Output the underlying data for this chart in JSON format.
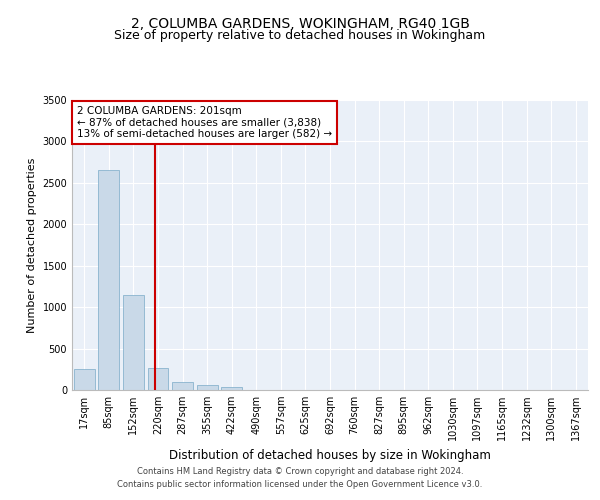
{
  "title": "2, COLUMBA GARDENS, WOKINGHAM, RG40 1GB",
  "subtitle": "Size of property relative to detached houses in Wokingham",
  "xlabel": "Distribution of detached houses by size in Wokingham",
  "ylabel": "Number of detached properties",
  "categories": [
    "17sqm",
    "85sqm",
    "152sqm",
    "220sqm",
    "287sqm",
    "355sqm",
    "422sqm",
    "490sqm",
    "557sqm",
    "625sqm",
    "692sqm",
    "760sqm",
    "827sqm",
    "895sqm",
    "962sqm",
    "1030sqm",
    "1097sqm",
    "1165sqm",
    "1232sqm",
    "1300sqm",
    "1367sqm"
  ],
  "values": [
    250,
    2650,
    1150,
    270,
    100,
    60,
    40,
    5,
    2,
    2,
    1,
    1,
    1,
    1,
    0,
    0,
    0,
    0,
    0,
    0,
    0
  ],
  "bar_color": "#c9d9e8",
  "bar_edge_color": "#7aaac8",
  "redline_index": 2.87,
  "annotation_text": "2 COLUMBA GARDENS: 201sqm\n← 87% of detached houses are smaller (3,838)\n13% of semi-detached houses are larger (582) →",
  "annotation_box_color": "#ffffff",
  "annotation_box_edge_color": "#cc0000",
  "ylim": [
    0,
    3500
  ],
  "yticks": [
    0,
    500,
    1000,
    1500,
    2000,
    2500,
    3000,
    3500
  ],
  "footer_line1": "Contains HM Land Registry data © Crown copyright and database right 2024.",
  "footer_line2": "Contains public sector information licensed under the Open Government Licence v3.0.",
  "plot_bg_color": "#eaf0f8",
  "fig_bg_color": "#ffffff",
  "grid_color": "#ffffff",
  "title_fontsize": 10,
  "subtitle_fontsize": 9,
  "tick_fontsize": 7,
  "ylabel_fontsize": 8,
  "xlabel_fontsize": 8.5,
  "annotation_fontsize": 7.5,
  "footer_fontsize": 6
}
